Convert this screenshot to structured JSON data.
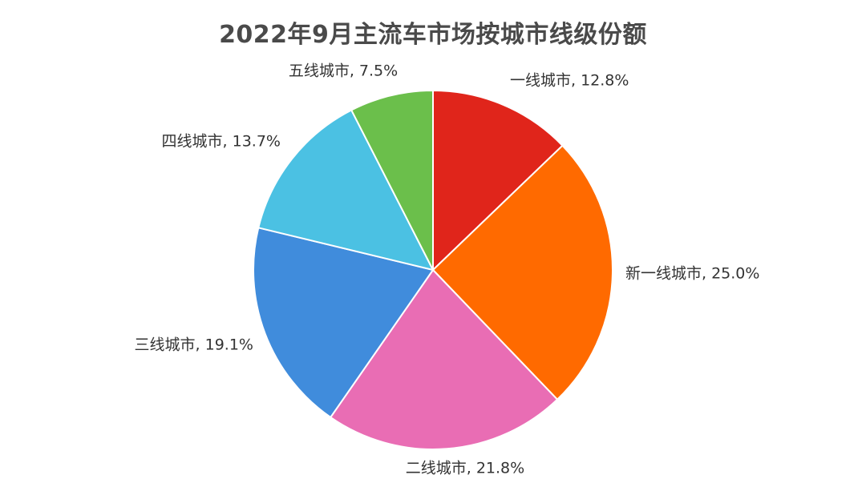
{
  "chart_data": {
    "type": "pie",
    "title": "2022年9月主流车市场按城市线级份额",
    "start_angle_deg": 0,
    "direction": "clockwise",
    "legend": "none",
    "slices": [
      {
        "name": "一线城市",
        "value": 12.8,
        "label": "一线城市, 12.8%",
        "color": "#e0251b"
      },
      {
        "name": "新一线城市",
        "value": 25.0,
        "label": "新一线城市, 25.0%",
        "color": "#ff6a00"
      },
      {
        "name": "二线城市",
        "value": 21.8,
        "label": "二线城市, 21.8%",
        "color": "#e96db4"
      },
      {
        "name": "三线城市",
        "value": 19.1,
        "label": "三线城市, 19.1%",
        "color": "#408cdc"
      },
      {
        "name": "四线城市",
        "value": 13.7,
        "label": "四线城市, 13.7%",
        "color": "#4bc1e3"
      },
      {
        "name": "五线城市",
        "value": 7.5,
        "label": "五线城市, 7.5%",
        "color": "#6bbf4b"
      }
    ]
  }
}
